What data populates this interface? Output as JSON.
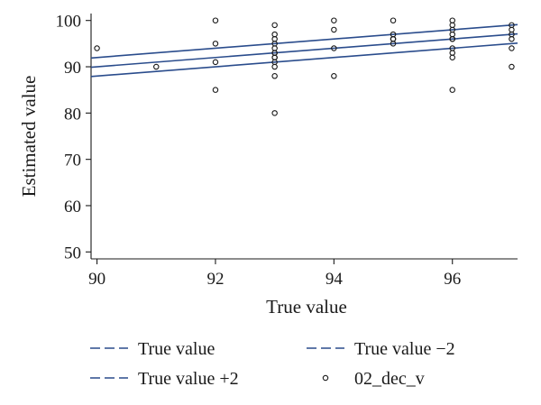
{
  "chart_data": {
    "type": "scatter",
    "xlabel": "True value",
    "ylabel": "Estimated value",
    "xlim": [
      89.9,
      97.1
    ],
    "ylim": [
      48.5,
      101.5
    ],
    "xticks": [
      90,
      92,
      94,
      96
    ],
    "yticks": [
      50,
      60,
      70,
      80,
      90,
      100
    ],
    "grid": false,
    "legend_position": "bottom",
    "series": [
      {
        "name": "02_dec_v",
        "kind": "points",
        "marker": "circle",
        "color": "#1a1a1a",
        "x": [
          90,
          91,
          92,
          92,
          92,
          92,
          93,
          93,
          93,
          93,
          93,
          93,
          93,
          93,
          93,
          93,
          93,
          93,
          93,
          94,
          94,
          94,
          94,
          95,
          95,
          95,
          95,
          95,
          96,
          96,
          96,
          96,
          96,
          96,
          96,
          96,
          96,
          96,
          97,
          97,
          97,
          97,
          97,
          97
        ],
        "y": [
          94,
          90,
          100,
          95,
          91,
          85,
          99,
          97,
          96,
          95,
          94,
          93,
          92,
          92,
          91,
          90,
          88,
          80,
          93,
          100,
          98,
          94,
          88,
          100,
          97,
          96,
          96,
          95,
          100,
          99,
          98,
          97,
          96,
          96,
          94,
          93,
          92,
          85,
          99,
          98,
          97,
          96,
          94,
          90
        ]
      },
      {
        "name": "True value",
        "kind": "line",
        "color": "#2a4c8c",
        "x": [
          89.9,
          97.1
        ],
        "y": [
          89.9,
          97.1
        ]
      },
      {
        "name": "True value −2",
        "kind": "line",
        "color": "#2a4c8c",
        "x": [
          89.9,
          97.1
        ],
        "y": [
          87.9,
          95.1
        ]
      },
      {
        "name": "True value +2",
        "kind": "line",
        "color": "#2a4c8c",
        "x": [
          89.9,
          97.1
        ],
        "y": [
          91.9,
          99.1
        ]
      }
    ],
    "legend": [
      {
        "label": "True value",
        "symbol": "dash",
        "color": "#2a4c8c"
      },
      {
        "label": "True value −2",
        "symbol": "dash",
        "color": "#2a4c8c"
      },
      {
        "label": "True value +2",
        "symbol": "dash",
        "color": "#2a4c8c"
      },
      {
        "label": "02_dec_v",
        "symbol": "circle",
        "color": "#1a1a1a"
      }
    ]
  }
}
